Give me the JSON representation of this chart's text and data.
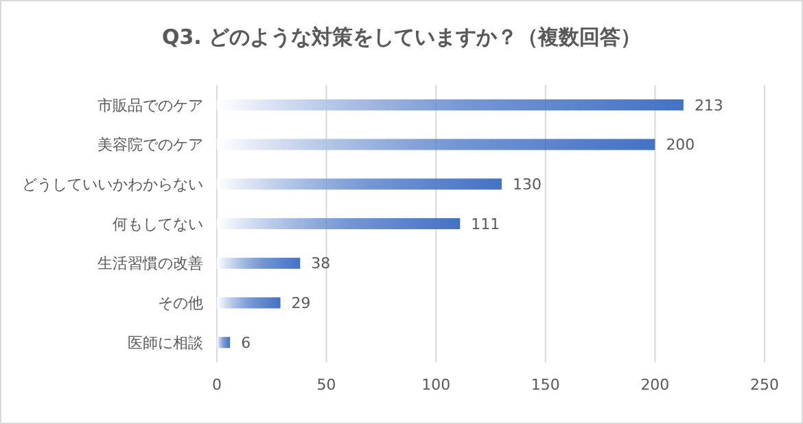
{
  "chart_data": {
    "type": "bar",
    "orientation": "horizontal",
    "title": "Q3. どのような対策をしていますか？（複数回答）",
    "categories": [
      "市販品でのケア",
      "美容院でのケア",
      "どうしていいかわからない",
      "何もしてない",
      "生活習慣の改善",
      "その他",
      "医師に相談"
    ],
    "values": [
      213,
      200,
      130,
      111,
      38,
      29,
      6
    ],
    "color": "#4472c4",
    "xlim": [
      0,
      250
    ],
    "xticks": [
      0,
      50,
      100,
      150,
      200,
      250
    ],
    "grid": "x",
    "data_labels": true
  }
}
